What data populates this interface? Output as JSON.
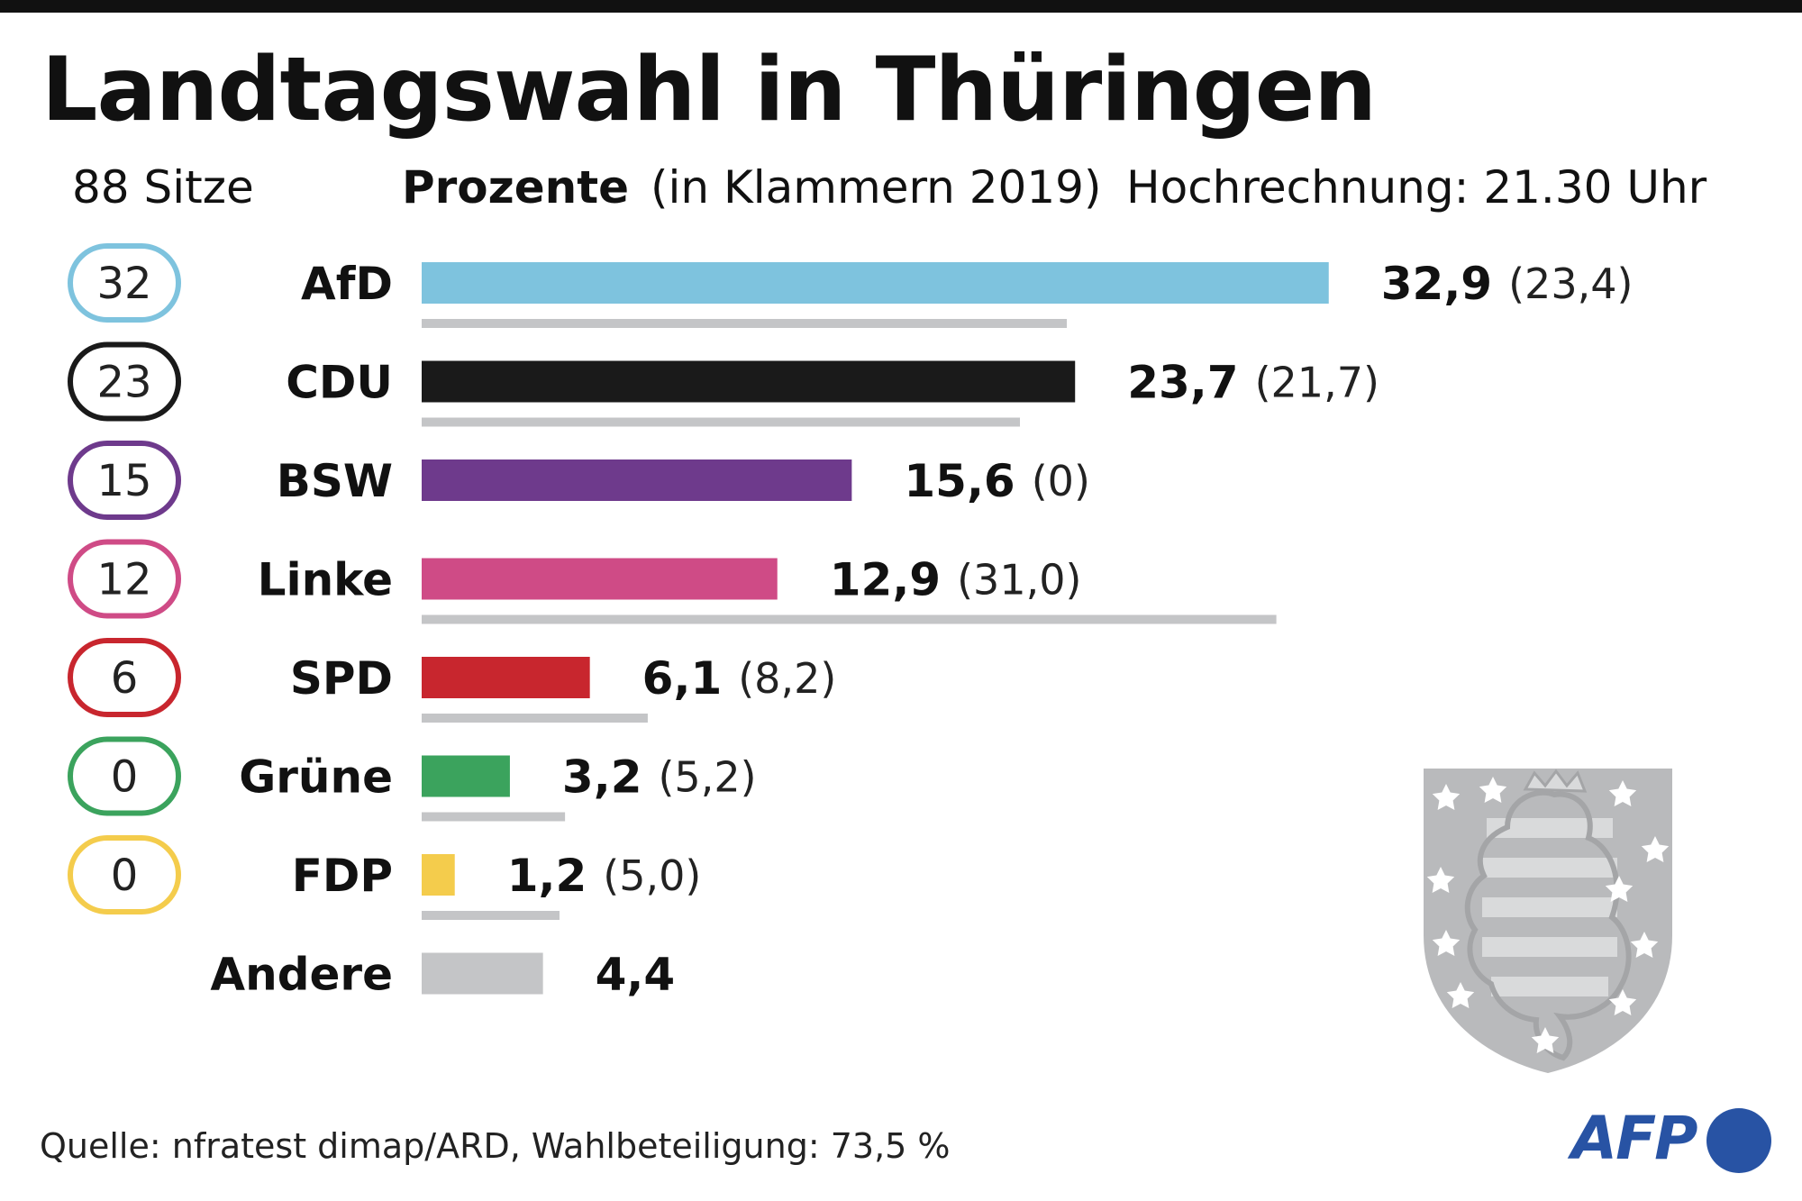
{
  "header": {
    "title": "Landtagswahl in Thüringen",
    "seats_label": "88 Sitze",
    "percent_label": "Prozente",
    "note": "(in Klammern 2019)",
    "time": "Hochrechnung: 21.30 Uhr"
  },
  "chart_data": {
    "type": "bar",
    "orientation": "horizontal",
    "title": "Landtagswahl in Thüringen",
    "xlabel": "",
    "ylabel": "",
    "xlim": [
      0,
      36
    ],
    "categories": [
      "AfD",
      "CDU",
      "BSW",
      "Linke",
      "SPD",
      "Grüne",
      "FDP",
      "Andere"
    ],
    "series": [
      {
        "values": [
          32.9,
          23.7,
          15.6,
          12.9,
          6.1,
          3.2,
          1.2,
          4.4
        ]
      },
      {
        "values": [
          23.4,
          21.7,
          0,
          31.0,
          8.2,
          5.2,
          5.0,
          null
        ]
      }
    ],
    "value_labels": [
      "32,9",
      "23,7",
      "15,6",
      "12,9",
      "6,1",
      "3,2",
      "1,2",
      "4,4"
    ],
    "prev_labels": [
      "(23,4)",
      "(21,7)",
      "(0)",
      "(31,0)",
      "(8,2)",
      "(5,2)",
      "(5,0)",
      ""
    ],
    "seats": [
      "32",
      "23",
      "15",
      "12",
      "6",
      "0",
      "0",
      ""
    ],
    "colors": [
      "#7ec3de",
      "#1a1a1a",
      "#6e3a8c",
      "#cf4b86",
      "#c8262e",
      "#3ba35d",
      "#f4cc4c",
      "#c4c5c7"
    ],
    "prev_color": "#c4c5c7",
    "grid": false,
    "legend": "none"
  },
  "footer": {
    "source": "Quelle: nfratest dimap/ARD, Wahlbeteiligung: 73,5 %"
  },
  "logo": {
    "text": "AFP",
    "color": "#2853a4"
  },
  "emblem": {
    "icon": "thuringia-coat-of-arms-icon",
    "color": "#b9babc"
  }
}
